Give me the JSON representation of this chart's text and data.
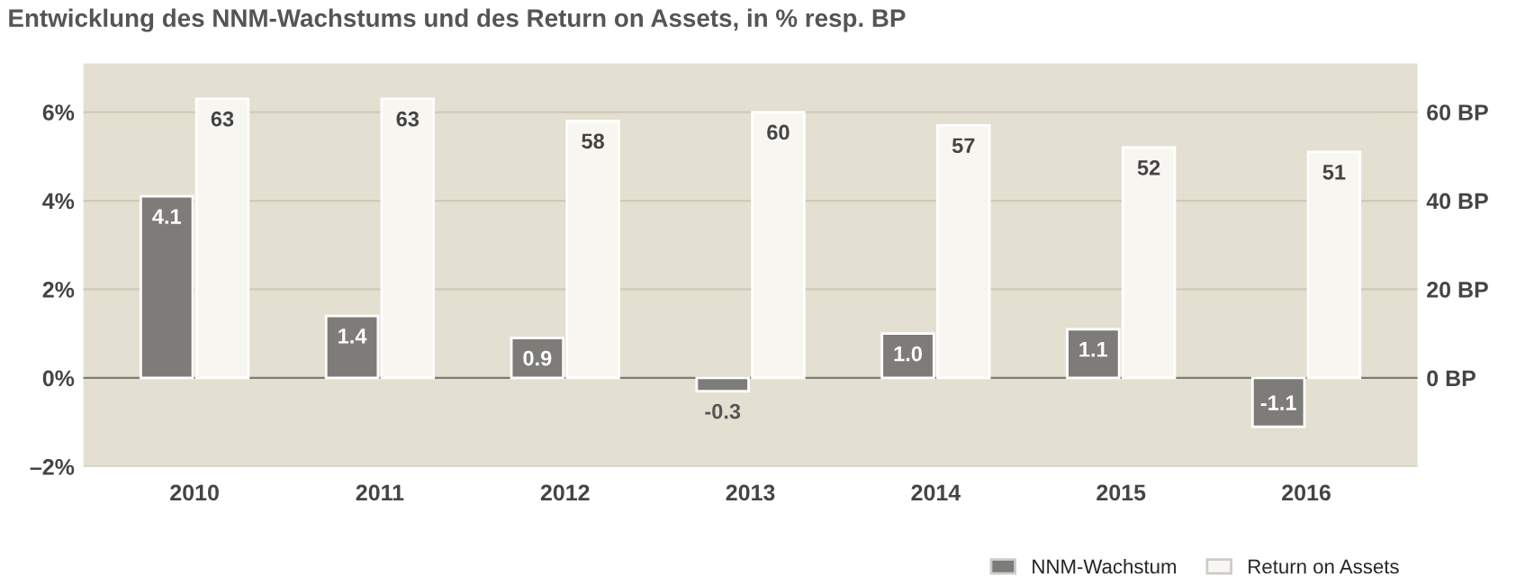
{
  "chart_data": {
    "type": "bar",
    "title": "Entwicklung des NNM-Wachstums und des Return on Assets, in % resp. BP",
    "categories": [
      "2010",
      "2011",
      "2012",
      "2013",
      "2014",
      "2015",
      "2016"
    ],
    "series": [
      {
        "name": "NNM-Wachstum",
        "color": "#7e7c79",
        "values": [
          4.1,
          1.4,
          0.9,
          -0.3,
          1.0,
          1.1,
          -1.1
        ],
        "value_labels": [
          "4.1",
          "1.4",
          "0.9",
          "-0.3",
          "1.0",
          "1.1",
          "-1.1"
        ]
      },
      {
        "name": "Return on Assets",
        "color": "#f8f6f0",
        "axis": "y2",
        "values": [
          63,
          63,
          58,
          60,
          57,
          52,
          51
        ]
      }
    ],
    "ylim": [
      -2,
      7.1
    ],
    "yticks": [
      {
        "value": -2,
        "label": "–2%"
      },
      {
        "value": 0,
        "label": "0%"
      },
      {
        "value": 2,
        "label": "2%"
      },
      {
        "value": 4,
        "label": "4%"
      },
      {
        "value": 6,
        "label": "6%"
      }
    ],
    "y2lim": [
      -20,
      71
    ],
    "y2ticks": [
      {
        "value": 0,
        "label": "0 BP"
      },
      {
        "value": 20,
        "label": "20 BP"
      },
      {
        "value": 40,
        "label": "40 BP"
      },
      {
        "value": 60,
        "label": "60 BP"
      }
    ],
    "grid": "y",
    "data_labels": true,
    "legend": "bottom right"
  }
}
